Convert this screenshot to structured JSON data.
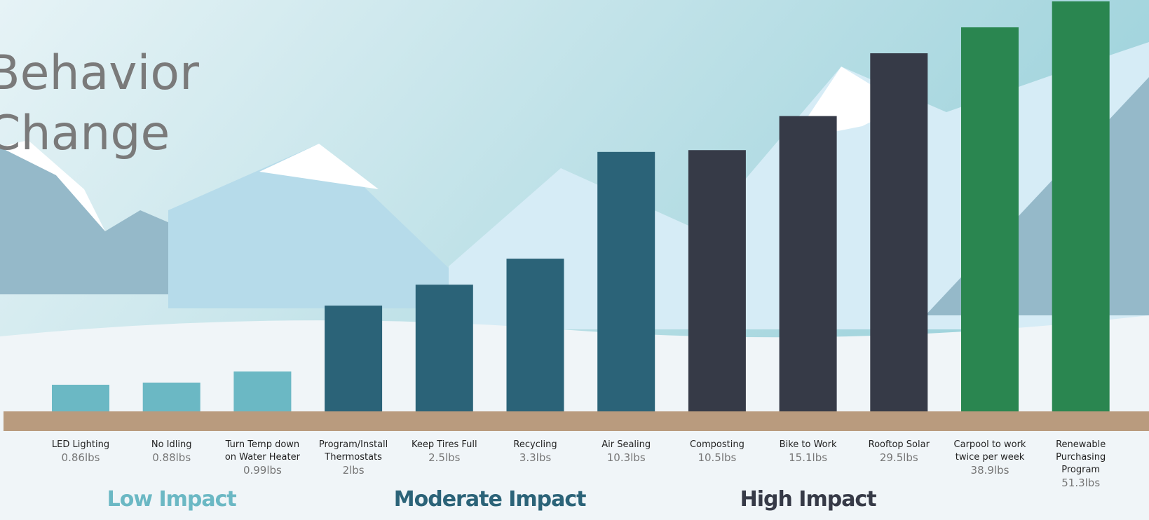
{
  "chart_data": {
    "type": "bar",
    "title": "Behavior Change",
    "log_scale": true,
    "groups": [
      {
        "name": "Low Impact",
        "color": "#6bb8c4",
        "categories": [
          "LED Lighting",
          "No Idling",
          "Turn Temp down on Water Heater"
        ],
        "values": [
          0.86,
          0.88,
          0.99
        ],
        "value_labels": [
          "0.86lbs",
          "0.88lbs",
          "0.99lbs"
        ]
      },
      {
        "name": "Moderate Impact",
        "color": "#2b6378",
        "categories": [
          "Program/Install Thermostats",
          "Keep Tires Full",
          "Recycling",
          "Air Sealing"
        ],
        "values": [
          2,
          2.5,
          3.3,
          10.3
        ],
        "value_labels": [
          "2lbs",
          "2.5lbs",
          "3.3lbs",
          "10.3lbs"
        ]
      },
      {
        "name": "High Impact",
        "color": "#363a47",
        "categories": [
          "Composting",
          "Bike to Work",
          "Rooftop Solar"
        ],
        "values": [
          10.5,
          15.1,
          29.5
        ],
        "value_labels": [
          "10.5lbs",
          "15.1lbs",
          "29.5lbs"
        ]
      },
      {
        "color": "#2a8650",
        "categories": [
          "Carpool to work twice per week",
          "Renewable Purchasing Program"
        ],
        "values": [
          38.9,
          51.3
        ],
        "value_labels": [
          "38.9lbs",
          "51.3lbs"
        ]
      }
    ]
  }
}
